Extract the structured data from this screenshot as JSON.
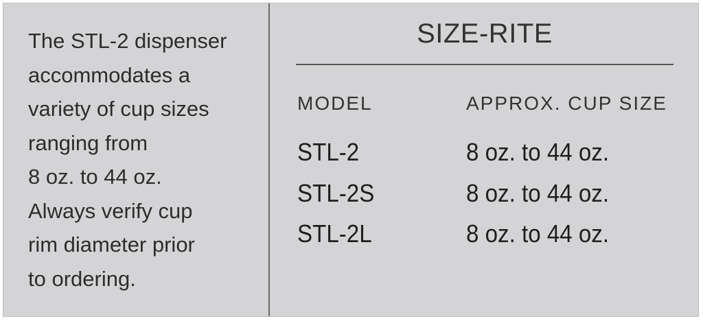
{
  "description": {
    "lines": [
      "The STL-2 dispenser",
      "accommodates a",
      "variety of cup sizes",
      "ranging from",
      "8 oz. to 44 oz.",
      "Always verify cup",
      "rim diameter prior",
      "to ordering."
    ]
  },
  "table": {
    "title": "SIZE-RITE",
    "headers": {
      "model": "MODEL",
      "size": "APPROX. CUP SIZE"
    },
    "rows": [
      {
        "model": "STL-2",
        "size": "8 oz. to 44 oz."
      },
      {
        "model": "STL-2S",
        "size": "8 oz. to 44 oz."
      },
      {
        "model": "STL-2L",
        "size": "8 oz. to 44 oz."
      }
    ]
  }
}
